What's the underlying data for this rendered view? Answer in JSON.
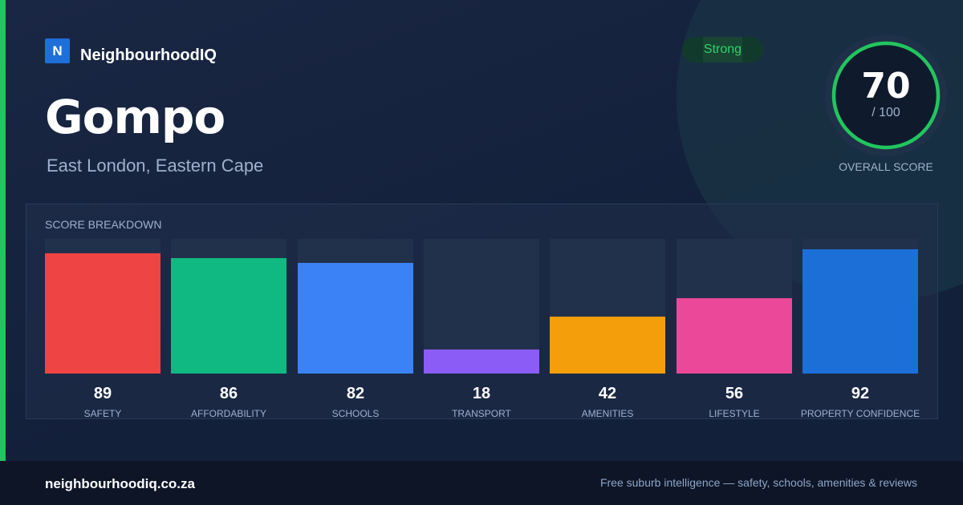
{
  "brand": {
    "logo_letter": "N",
    "name": "NeighbourhoodIQ"
  },
  "suburb": {
    "name": "Gompo",
    "location": "East London, Eastern Cape"
  },
  "badge": {
    "label": "Strong",
    "color": "#22c55e"
  },
  "overall": {
    "score": "70",
    "max_label": "/ 100",
    "label": "OVERALL SCORE",
    "fraction": 0.7,
    "ring_color": "#22c55e"
  },
  "breakdown": {
    "title": "SCORE BREAKDOWN",
    "items": [
      {
        "label": "SAFETY",
        "value": "89",
        "pct": 89,
        "color": "#ef4444"
      },
      {
        "label": "AFFORDABILITY",
        "value": "86",
        "pct": 86,
        "color": "#10b981"
      },
      {
        "label": "SCHOOLS",
        "value": "82",
        "pct": 82,
        "color": "#3b82f6"
      },
      {
        "label": "TRANSPORT",
        "value": "18",
        "pct": 18,
        "color": "#8b5cf6"
      },
      {
        "label": "AMENITIES",
        "value": "42",
        "pct": 42,
        "color": "#f59e0b"
      },
      {
        "label": "LIFESTYLE",
        "value": "56",
        "pct": 56,
        "color": "#ec4899"
      },
      {
        "label": "PROPERTY CONFIDENCE",
        "value": "92",
        "pct": 92,
        "color": "#1d6fd8"
      }
    ]
  },
  "footer": {
    "url": "neighbourhoodiq.co.za",
    "tagline": "Free suburb intelligence — safety, schools, amenities & reviews"
  }
}
